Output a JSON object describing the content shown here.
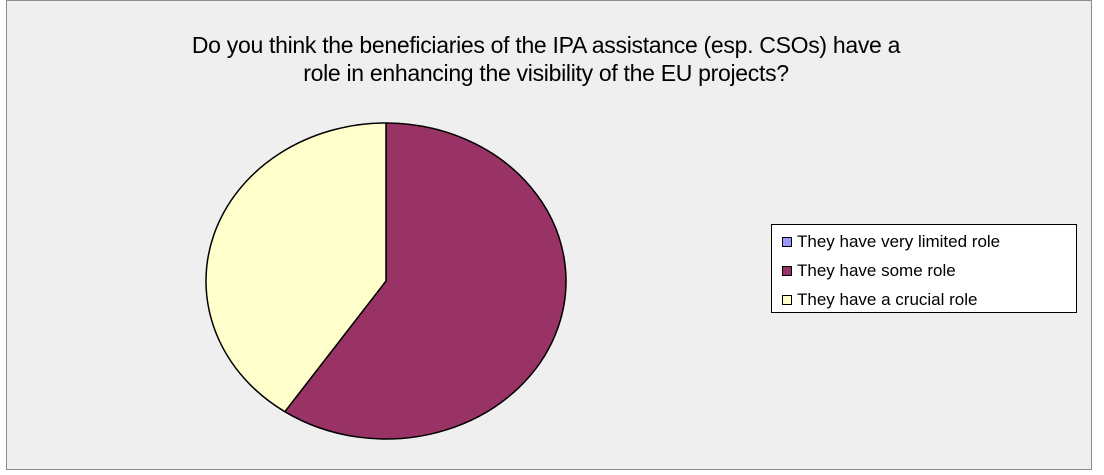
{
  "chart_data": {
    "type": "pie",
    "title": "Do you think the beneficiaries of the IPA assistance (esp. CSOs) have a role in enhancing the visibility of the EU projects?",
    "title_lines": [
      "Do you think the beneficiaries of the IPA assistance (esp. CSOs) have a",
      "role in enhancing the visibility of the EU projects?"
    ],
    "categories": [
      "They have very limited role",
      "They have some role",
      "They have a crucial role"
    ],
    "values": [
      0,
      59.5,
      40.5
    ],
    "colors": [
      "#9999ff",
      "#993366",
      "#ffffcc"
    ],
    "legend_position": "right",
    "start_angle_deg": 0,
    "direction": "clockwise"
  }
}
